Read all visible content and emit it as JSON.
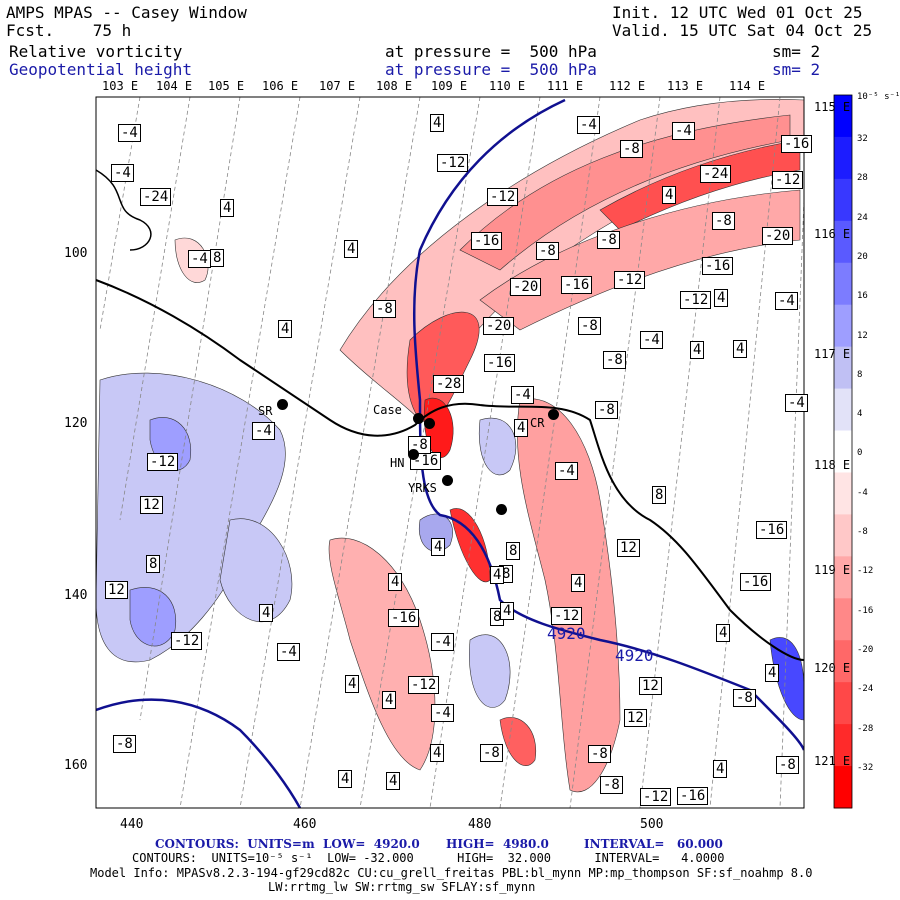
{
  "header": {
    "app": "AMPS MPAS -- Casey Window",
    "fcst": "Fcst.    75 h",
    "init": "Init. 12 UTC Wed 01 Oct 25",
    "valid": "Valid. 15 UTC Sat 04 Oct 25",
    "field1": {
      "name": "Relative vorticity",
      "level": "at pressure =  500 hPa",
      "sm": "sm= 2"
    },
    "field2": {
      "name": "Geopotential height",
      "level": "at pressure =  500 hPa",
      "sm": "sm= 2"
    }
  },
  "axes": {
    "top_lon": [
      "103 E",
      "104 E",
      "105 E",
      "106 E",
      "107 E",
      "108 E",
      "109 E",
      "110 E",
      "111 E",
      "112 E",
      "113 E",
      "114 E"
    ],
    "right_lon": [
      "115 E",
      "116 E",
      "117 E",
      "118 E",
      "119 E",
      "120 E",
      "121 E"
    ],
    "left_grid": [
      "100",
      "120",
      "140",
      "160"
    ],
    "bottom_grid": [
      "440",
      "460",
      "480",
      "500"
    ]
  },
  "colorbar": {
    "unit": "10⁻⁵ s⁻¹",
    "labels": [
      "32",
      "28",
      "24",
      "20",
      "16",
      "12",
      "8",
      "4",
      "0",
      "-4",
      "-8",
      "-12",
      "-16",
      "-20",
      "-24",
      "-28",
      "-32"
    ],
    "colors": [
      "#0000ff",
      "#1c1cff",
      "#3838ff",
      "#5a5aff",
      "#7c7cff",
      "#9e9eff",
      "#c0c0f4",
      "#e2e2f8",
      "#ffffff",
      "#ffe4e4",
      "#ffc8c8",
      "#ffa8a8",
      "#ff8888",
      "#ff6868",
      "#ff4848",
      "#ff2a2a",
      "#ff0000"
    ]
  },
  "stations": [
    "SR",
    "Case",
    "CR",
    "HN",
    "YRKS"
  ],
  "height_labels": [
    "4920",
    "4920"
  ],
  "vort_labels": [
    "-4",
    "4",
    "-4",
    "-4",
    "-8",
    "-4",
    "-12",
    "-12",
    "-16",
    "-24",
    "-12",
    "4",
    "4",
    "-8",
    "-8",
    "-16",
    "-8",
    "-24",
    "-20",
    "4",
    "-20",
    "-16",
    "-12",
    "-16",
    "-12",
    "4",
    "-4",
    "-8",
    "4",
    "-8",
    "-20",
    "-16",
    "4",
    "-4",
    "-8",
    "4",
    "-4",
    "-16",
    "-28",
    "-4",
    "-8",
    "-4",
    "-8",
    "-4",
    "-12",
    "12",
    "8",
    "4",
    "8",
    "12",
    "-16",
    "4",
    "8",
    "12",
    "4",
    "-16",
    "-12",
    "-16",
    "4",
    "4",
    "-12",
    "8",
    "-4",
    "-4",
    "-12",
    "4",
    "12",
    "12",
    "-8",
    "-8",
    "4",
    "-8",
    "4",
    "-8",
    "4",
    "4",
    "4",
    "-16",
    "-12",
    "-8",
    "4",
    "4",
    "8",
    "-8",
    "-4",
    "4",
    "8",
    "4",
    "-4"
  ],
  "footer": {
    "line1_a": "CONTOURS:  UNITS=m  LOW=  4920.0",
    "line1_b": "HIGH=  4980.0",
    "line1_c": "INTERVAL=   60.000",
    "line2": "CONTOURS:  UNITS=10⁻⁵ s⁻¹  LOW= -32.000      HIGH=  32.000      INTERVAL=   4.0000",
    "line3": "Model Info: MPASv8.2.3-194-gf29cd82c CU:cu_grell_freitas PBL:bl_mynn MP:mp_thompson SF:sf_noahmp 8.0",
    "line4": "LW:rrtmg_lw SW:rrtmg_sw SFLAY:sf_mynn"
  }
}
